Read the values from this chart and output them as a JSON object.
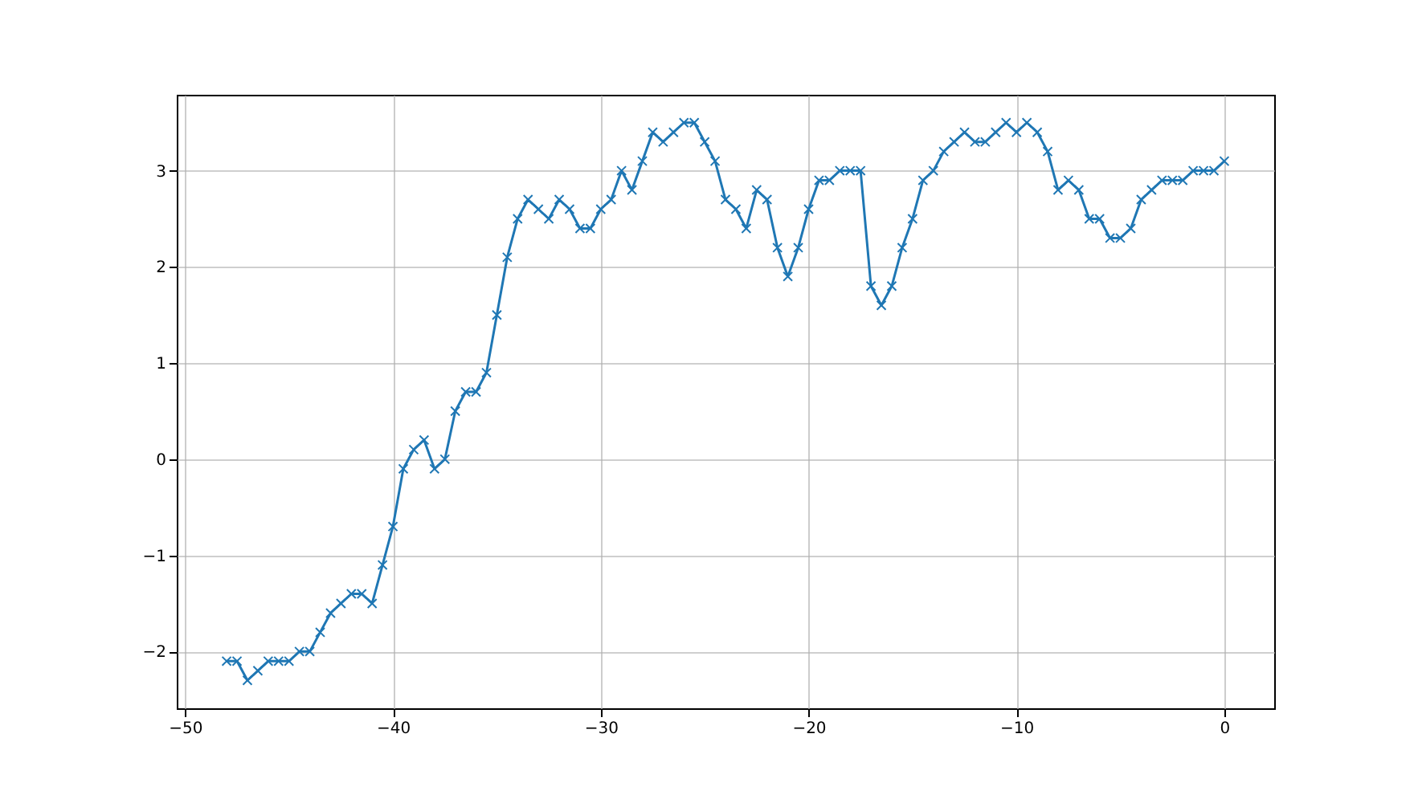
{
  "chart_data": {
    "type": "line",
    "x": [
      -48,
      -47.5,
      -47,
      -46.5,
      -46,
      -45.5,
      -45,
      -44.5,
      -44,
      -43.5,
      -43,
      -42.5,
      -42,
      -41.5,
      -41,
      -40.5,
      -40,
      -39.5,
      -39,
      -38.5,
      -38,
      -37.5,
      -37,
      -36.5,
      -36,
      -35.5,
      -35,
      -34.5,
      -34,
      -33.5,
      -33,
      -32.5,
      -32,
      -31.5,
      -31,
      -30.5,
      -30,
      -29.5,
      -29,
      -28.5,
      -28,
      -27.5,
      -27,
      -26.5,
      -26,
      -25.5,
      -25,
      -24.5,
      -24,
      -23.5,
      -23,
      -22.5,
      -22,
      -21.5,
      -21,
      -20.5,
      -20,
      -19.5,
      -19,
      -18.5,
      -18,
      -17.5,
      -17,
      -16.5,
      -16,
      -15.5,
      -15,
      -14.5,
      -14,
      -13.5,
      -13,
      -12.5,
      -12,
      -11.5,
      -11,
      -10.5,
      -10,
      -9.5,
      -9,
      -8.5,
      -8,
      -7.5,
      -7,
      -6.5,
      -6,
      -5.5,
      -5,
      -4.5,
      -4,
      -3.5,
      -3,
      -2.5,
      -2,
      -1.5,
      -1,
      -0.5,
      0
    ],
    "series": [
      {
        "color": "#1f77b4",
        "values": [
          -2.1,
          -2.1,
          -2.3,
          -2.2,
          -2.1,
          -2.1,
          -2.1,
          -2.0,
          -2.0,
          -1.8,
          -1.6,
          -1.5,
          -1.4,
          -1.4,
          -1.5,
          -1.1,
          -0.7,
          -0.1,
          0.1,
          0.2,
          -0.1,
          0.0,
          0.5,
          0.7,
          0.7,
          0.9,
          1.5,
          2.1,
          2.5,
          2.7,
          2.6,
          2.5,
          2.7,
          2.6,
          2.4,
          2.4,
          2.6,
          2.7,
          3.0,
          2.8,
          3.1,
          3.4,
          3.3,
          3.4,
          3.5,
          3.5,
          3.3,
          3.1,
          2.7,
          2.6,
          2.4,
          2.8,
          2.7,
          2.2,
          1.9,
          2.2,
          2.6,
          2.9,
          2.9,
          3.0,
          3.0,
          3.0,
          1.8,
          1.6,
          1.8,
          2.2,
          2.5,
          2.9,
          3.0,
          3.2,
          3.3,
          3.4,
          3.3,
          3.3,
          3.4,
          3.5,
          3.4,
          3.5,
          3.4,
          3.2,
          2.8,
          2.9,
          2.8,
          2.5,
          2.5,
          2.3,
          2.3,
          2.4,
          2.7,
          2.8,
          2.9,
          2.9,
          2.9,
          3.0,
          3.0,
          3.0,
          3.1
        ]
      }
    ],
    "xlim": [
      -50.4,
      2.4
    ],
    "ylim": [
      -2.59,
      3.79
    ],
    "xticks": [
      -50,
      -40,
      -30,
      -20,
      -10,
      0
    ],
    "yticks": [
      -2,
      -1,
      0,
      1,
      2,
      3
    ],
    "grid": true,
    "marker": "cross",
    "line_style": "solid"
  }
}
